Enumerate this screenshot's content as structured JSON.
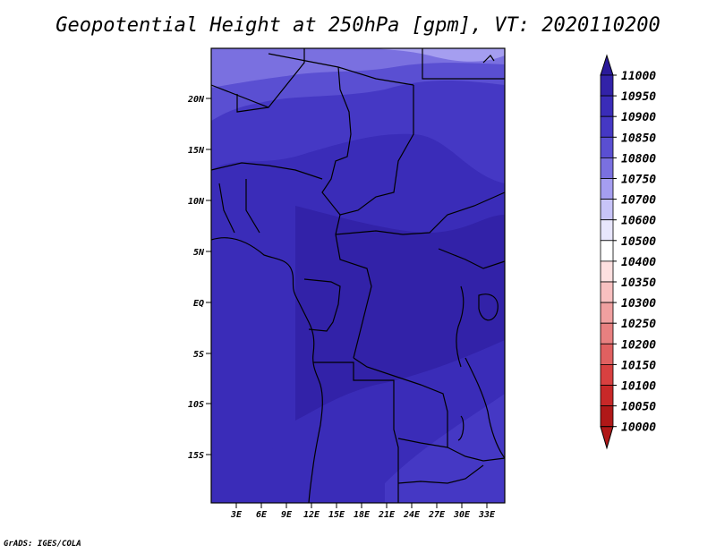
{
  "title": "Geopotential Height at 250hPa [gpm], VT: 2020110200",
  "credit": "GrADS: IGES/COLA",
  "lat_labels": [
    "20N",
    "15N",
    "10N",
    "5N",
    "EQ",
    "5S",
    "10S",
    "15S"
  ],
  "lon_labels": [
    "3E",
    "6E",
    "9E",
    "12E",
    "15E",
    "18E",
    "21E",
    "24E",
    "27E",
    "30E",
    "33E"
  ],
  "legend": {
    "levels": [
      "11000",
      "10950",
      "10900",
      "10850",
      "10800",
      "10750",
      "10700",
      "10600",
      "10500",
      "10400",
      "10350",
      "10300",
      "10250",
      "10200",
      "10150",
      "10100",
      "10050",
      "10000"
    ],
    "colors": [
      "#2a1a9a",
      "#3222a8",
      "#3a2cb8",
      "#4538c4",
      "#5a4fd2",
      "#7a70e0",
      "#a59ef0",
      "#c8c4f8",
      "#e8e6fc",
      "#ffffff",
      "#fde0e0",
      "#f8c0c0",
      "#f0a0a0",
      "#e88080",
      "#e06060",
      "#d84040",
      "#c82828",
      "#b01818"
    ]
  },
  "colors": {
    "deep": "#3a2cb8",
    "mid": "#4538c4",
    "light": "#5a4fd2",
    "lighter": "#7a70e0",
    "lightest": "#a59ef0",
    "border": "#000000"
  }
}
